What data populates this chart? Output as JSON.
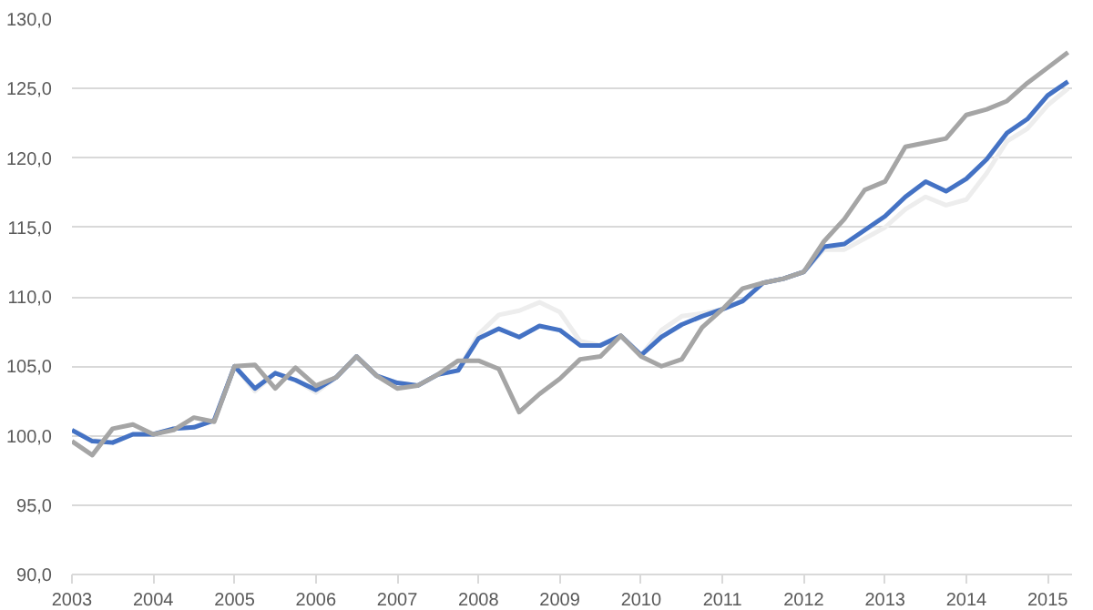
{
  "chart_data": {
    "type": "line",
    "x": [
      2003.0,
      2003.25,
      2003.5,
      2003.75,
      2004.0,
      2004.25,
      2004.5,
      2004.75,
      2005.0,
      2005.25,
      2005.5,
      2005.75,
      2006.0,
      2006.25,
      2006.5,
      2006.75,
      2007.0,
      2007.25,
      2007.5,
      2007.75,
      2008.0,
      2008.25,
      2008.5,
      2008.75,
      2009.0,
      2009.25,
      2009.5,
      2009.75,
      2010.0,
      2010.25,
      2010.5,
      2010.75,
      2011.0,
      2011.25,
      2011.5,
      2011.75,
      2012.0,
      2012.25,
      2012.5,
      2012.75,
      2013.0,
      2013.25,
      2013.5,
      2013.75,
      2014.0,
      2014.25,
      2014.5,
      2014.75,
      2015.0,
      2015.25
    ],
    "series": [
      {
        "color": "#ededed",
        "values": [
          100.4,
          99.7,
          99.5,
          100.1,
          100.1,
          100.5,
          100.6,
          101.1,
          105.0,
          103.2,
          104.5,
          104.0,
          103.1,
          104.2,
          105.7,
          104.3,
          103.8,
          103.6,
          104.4,
          104.7,
          107.3,
          108.7,
          109.0,
          109.6,
          108.9,
          106.8,
          106.5,
          107.2,
          105.8,
          107.6,
          108.6,
          108.8,
          109.1,
          109.7,
          111.0,
          111.3,
          111.8,
          113.4,
          113.4,
          114.2,
          115.0,
          116.3,
          117.2,
          116.6,
          117.0,
          118.9,
          121.2,
          122.1,
          123.8,
          125.0
        ]
      },
      {
        "color": "#4472c4",
        "values": [
          100.4,
          99.6,
          99.5,
          100.1,
          100.1,
          100.5,
          100.6,
          101.1,
          105.0,
          103.4,
          104.5,
          104.0,
          103.3,
          104.2,
          105.7,
          104.3,
          103.8,
          103.6,
          104.4,
          104.7,
          107.0,
          107.7,
          107.1,
          107.9,
          107.6,
          106.5,
          106.5,
          107.2,
          105.8,
          107.1,
          108.0,
          108.6,
          109.1,
          109.7,
          111.0,
          111.3,
          111.8,
          113.6,
          113.8,
          114.8,
          115.8,
          117.2,
          118.3,
          117.6,
          118.5,
          119.9,
          121.8,
          122.8,
          124.5,
          125.5
        ]
      },
      {
        "color": "#a5a5a5",
        "values": [
          99.6,
          98.6,
          100.5,
          100.8,
          100.1,
          100.4,
          101.3,
          101.0,
          105.0,
          105.1,
          103.4,
          104.9,
          103.6,
          104.2,
          105.7,
          104.3,
          103.4,
          103.6,
          104.4,
          105.4,
          105.4,
          104.8,
          101.7,
          103.0,
          104.1,
          105.5,
          105.7,
          107.2,
          105.7,
          105.0,
          105.5,
          107.8,
          109.1,
          110.6,
          111.0,
          111.3,
          111.8,
          114.0,
          115.6,
          117.7,
          118.3,
          120.8,
          121.1,
          121.4,
          123.1,
          123.5,
          124.1,
          125.4,
          126.5,
          127.6
        ]
      }
    ],
    "xlim": [
      2003,
      2015.3
    ],
    "xticks": [
      2003,
      2004,
      2005,
      2006,
      2007,
      2008,
      2009,
      2010,
      2011,
      2012,
      2013,
      2014,
      2015
    ],
    "ylim": [
      90,
      130
    ],
    "yticks": [
      {
        "value": 90,
        "label": "90,0"
      },
      {
        "value": 95,
        "label": "95,0"
      },
      {
        "value": 100,
        "label": "100,0"
      },
      {
        "value": 105,
        "label": "105,0"
      },
      {
        "value": 110,
        "label": "110,0"
      },
      {
        "value": 115,
        "label": "115,0"
      },
      {
        "value": 120,
        "label": "120,0"
      },
      {
        "value": 125,
        "label": "125,0"
      },
      {
        "value": 130,
        "label": "130,0"
      }
    ],
    "grid": "y",
    "marker": "none",
    "line_style": "solid"
  }
}
